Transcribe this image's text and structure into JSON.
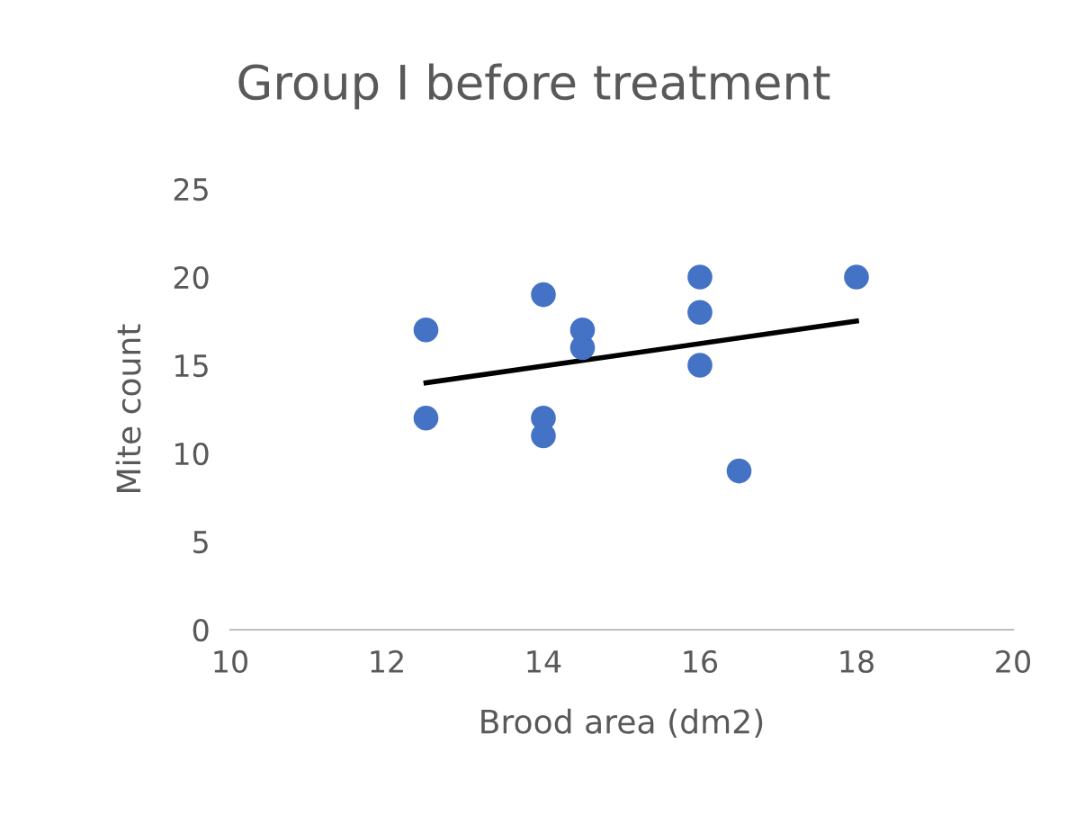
{
  "chart_data": {
    "type": "scatter",
    "title": "Group I before treatment",
    "xlabel": "Brood area (dm2)",
    "ylabel": "Mite count",
    "series": [
      {
        "color": "#4472c4",
        "marker": "circle",
        "x": [
          12.5,
          12.5,
          14,
          14,
          14,
          14.5,
          14.5,
          16,
          16,
          16,
          16.5,
          18
        ],
        "values": [
          17,
          12,
          19,
          12,
          11,
          17,
          16,
          20,
          18,
          15,
          9,
          20
        ]
      },
      {
        "type": "line",
        "color": "#000000",
        "x": [
          12.5,
          18
        ],
        "values": [
          14,
          17.5
        ]
      }
    ],
    "xlim": [
      10,
      20
    ],
    "xticks": [
      10,
      12,
      14,
      16,
      18,
      20
    ],
    "ylim": [
      0,
      25
    ],
    "yticks": [
      0,
      5,
      10,
      15,
      20,
      25
    ],
    "grid": false
  }
}
